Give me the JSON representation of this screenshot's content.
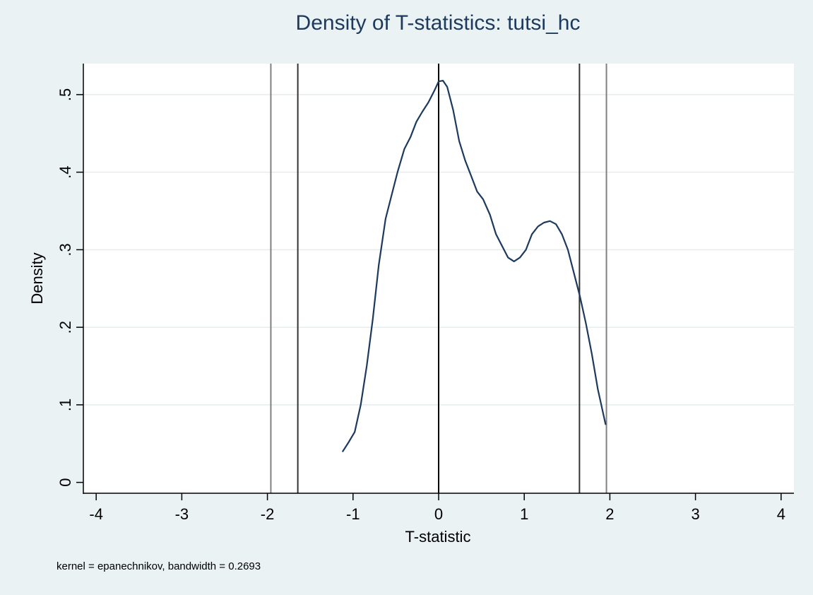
{
  "chart_data": {
    "type": "line",
    "title": "Density of T-statistics: tutsi_hc",
    "xlabel": "T-statistic",
    "ylabel": "Density",
    "note": "kernel = epanechnikov, bandwidth = 0.2693",
    "xlim": [
      -4.15,
      4.15
    ],
    "ylim": [
      -0.014,
      0.54
    ],
    "x_ticks": [
      {
        "value": -4,
        "label": "-4"
      },
      {
        "value": -3,
        "label": "-3"
      },
      {
        "value": -2,
        "label": "-2"
      },
      {
        "value": -1,
        "label": "-1"
      },
      {
        "value": 0,
        "label": "0"
      },
      {
        "value": 1,
        "label": "1"
      },
      {
        "value": 2,
        "label": "2"
      },
      {
        "value": 3,
        "label": "3"
      },
      {
        "value": 4,
        "label": "4"
      }
    ],
    "y_ticks": [
      {
        "value": 0,
        "label": "0"
      },
      {
        "value": 0.1,
        "label": ".1"
      },
      {
        "value": 0.2,
        "label": ".2"
      },
      {
        "value": 0.3,
        "label": ".3"
      },
      {
        "value": 0.4,
        "label": ".4"
      },
      {
        "value": 0.5,
        "label": ".5"
      }
    ],
    "grid": {
      "horizontal": true,
      "vertical": false
    },
    "legend": "none",
    "reference_lines": [
      {
        "x": -1.96,
        "color": "#808080"
      },
      {
        "x": -1.645,
        "color": "#333333"
      },
      {
        "x": 0,
        "color": "#000000"
      },
      {
        "x": 1.645,
        "color": "#333333"
      },
      {
        "x": 1.96,
        "color": "#808080"
      }
    ],
    "series": [
      {
        "color": "#1c3a5e",
        "x": [
          -1.12,
          -1.05,
          -0.98,
          -0.91,
          -0.84,
          -0.77,
          -0.7,
          -0.62,
          -0.55,
          -0.48,
          -0.4,
          -0.33,
          -0.26,
          -0.19,
          -0.12,
          -0.05,
          0.0,
          0.05,
          0.1,
          0.17,
          0.24,
          0.31,
          0.38,
          0.45,
          0.52,
          0.6,
          0.67,
          0.74,
          0.81,
          0.88,
          0.95,
          1.02,
          1.09,
          1.16,
          1.23,
          1.3,
          1.37,
          1.44,
          1.51,
          1.58,
          1.65,
          1.72,
          1.79,
          1.86,
          1.95
        ],
        "y": [
          0.04,
          0.052,
          0.065,
          0.1,
          0.15,
          0.21,
          0.28,
          0.34,
          0.37,
          0.4,
          0.43,
          0.445,
          0.465,
          0.478,
          0.49,
          0.505,
          0.517,
          0.518,
          0.51,
          0.48,
          0.44,
          0.415,
          0.395,
          0.375,
          0.365,
          0.345,
          0.32,
          0.305,
          0.29,
          0.285,
          0.29,
          0.3,
          0.32,
          0.33,
          0.335,
          0.337,
          0.333,
          0.32,
          0.3,
          0.27,
          0.24,
          0.205,
          0.165,
          0.12,
          0.075
        ]
      }
    ]
  }
}
